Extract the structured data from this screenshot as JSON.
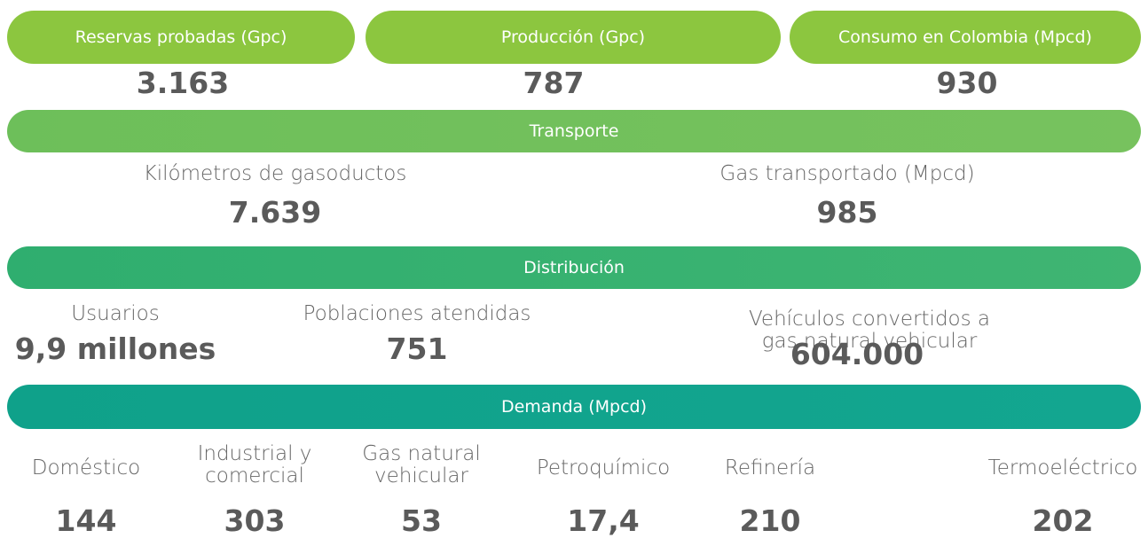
{
  "production": [
    {
      "label": "Reservas probadas (Gpc)",
      "value": "3.163"
    },
    {
      "label": "Producción (Gpc)",
      "value": "787"
    },
    {
      "label": "Consumo en Colombia (Mpcd)",
      "value": "930"
    }
  ],
  "transport": {
    "title": "Transporte",
    "items": [
      {
        "label": "Kilómetros de gasoductos",
        "value": "7.639"
      },
      {
        "label": "Gas transportado (Mpcd)",
        "value": "985"
      }
    ]
  },
  "distribution": {
    "title": "Distribución",
    "items": [
      {
        "label": "Usuarios",
        "value": "9,9 millones"
      },
      {
        "label": "Poblaciones atendidas",
        "value": "751"
      },
      {
        "label": "Vehículos convertidos a gas natural vehicular",
        "value": "604.000"
      }
    ]
  },
  "demand": {
    "title": "Demanda (Mpcd)",
    "items": [
      {
        "label": "Doméstico",
        "value": "144"
      },
      {
        "label": "Industrial y\ncomercial",
        "value": "303"
      },
      {
        "label": "Gas natural\nvehicular",
        "value": "53"
      },
      {
        "label": "Petroquímico",
        "value": "17,4"
      },
      {
        "label": "Refinería",
        "value": "210"
      },
      {
        "label": "Termoeléctrico",
        "value": "202"
      }
    ]
  }
}
